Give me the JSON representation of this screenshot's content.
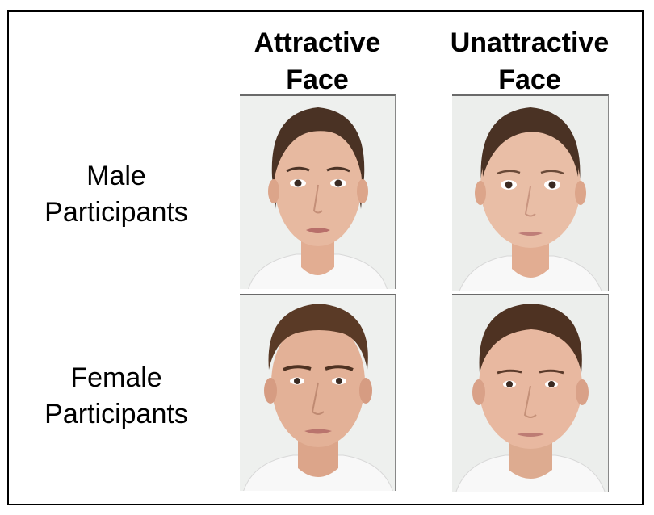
{
  "columns": {
    "attractive": {
      "line1": "Attractive",
      "line2": "Face"
    },
    "unattractive": {
      "line1": "Unattractive",
      "line2": "Face"
    }
  },
  "rows": {
    "male": {
      "line1": "Male",
      "line2": "Participants"
    },
    "female": {
      "line1": "Female",
      "line2": "Participants"
    }
  },
  "colors": {
    "background": "#ffffff",
    "photo_bg": "#eef0ee",
    "skin": "#e7b9a0",
    "hair_dark": "#4a3224",
    "hair_brown": "#5a3a26",
    "lips": "#b86f6a",
    "shirt": "#f8f8f8"
  },
  "images": {
    "attractive_female_face": {
      "icon": "female-face-photo"
    },
    "unattractive_female_face": {
      "icon": "female-face-photo"
    },
    "attractive_male_face": {
      "icon": "male-face-photo"
    },
    "unattractive_male_face": {
      "icon": "male-face-photo"
    }
  }
}
